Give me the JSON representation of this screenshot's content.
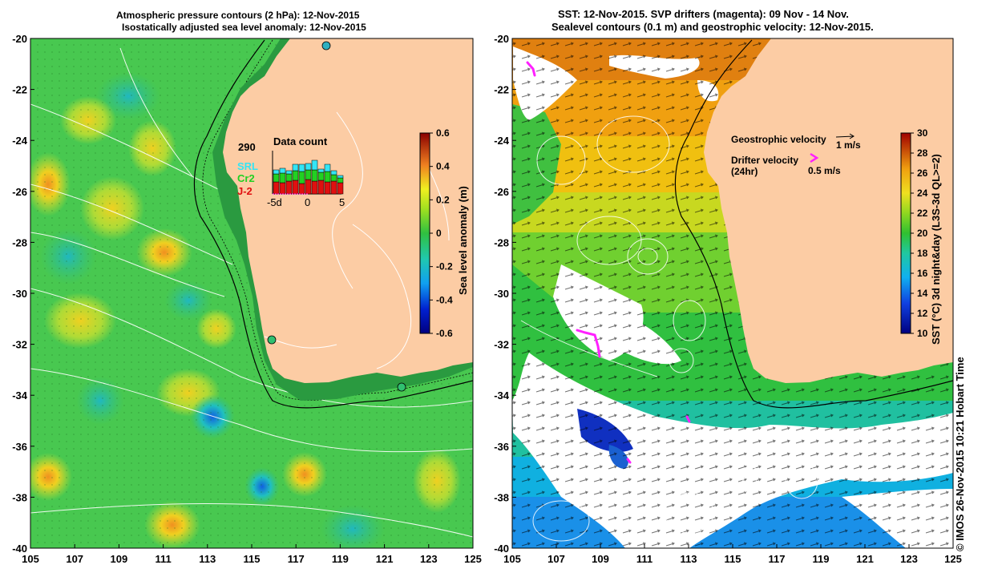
{
  "left_panel": {
    "title_line1": "Atmospheric pressure contours (2 hPa): 12-Nov-2015",
    "title_line2": "Isostatically adjusted sea level anomaly: 12-Nov-2015",
    "x_ticks": [
      "105",
      "107",
      "109",
      "111",
      "113",
      "115",
      "117",
      "119",
      "121",
      "123",
      "125"
    ],
    "y_ticks": [
      "-20",
      "-22",
      "-24",
      "-26",
      "-28",
      "-30",
      "-32",
      "-34",
      "-36",
      "-38",
      "-40"
    ],
    "colorbar": {
      "label": "Sea level anomaly (m)",
      "ticks": [
        "0.6",
        "0.4",
        "0.2",
        "0",
        "-0.2",
        "-0.4",
        "-0.6"
      ],
      "range": [
        -0.6,
        0.6
      ]
    },
    "inset": {
      "title": "Data count",
      "count": "290",
      "legend": [
        {
          "label": "SRL",
          "color": "#33e5f5"
        },
        {
          "label": "Cr2",
          "color": "#22d022"
        },
        {
          "label": "J-2",
          "color": "#e01010"
        }
      ],
      "x_ticks": [
        "-5d",
        "0",
        "5"
      ]
    }
  },
  "right_panel": {
    "title_line1": "SST: 12-Nov-2015. SVP drifters (magenta): 09 Nov - 14 Nov.",
    "title_line2": "Sealevel contours (0.1 m) and geostrophic velocity: 12-Nov-2015.",
    "x_ticks": [
      "105",
      "107",
      "109",
      "111",
      "113",
      "115",
      "117",
      "119",
      "121",
      "123",
      "125"
    ],
    "y_ticks": [
      "-20",
      "-22",
      "-24",
      "-26",
      "-28",
      "-30",
      "-32",
      "-34",
      "-36",
      "-38",
      "-40"
    ],
    "legend": {
      "geostrophic_label": "Geostrophic velocity",
      "geostrophic_scale": "1 m/s",
      "drifter_label": "Drifter velocity",
      "drifter_sub": "(24hr)",
      "drifter_scale": "0.5 m/s"
    },
    "colorbar": {
      "label": "SST (°C) 3d night&day (L3S-3d QL>=2)",
      "ticks": [
        "30",
        "28",
        "26",
        "24",
        "22",
        "20",
        "18",
        "16",
        "14",
        "12",
        "10"
      ],
      "range": [
        10,
        30
      ]
    }
  },
  "credit": "© IMOS 26-Nov-2015 10:21 Hobart Time",
  "colors": {
    "land": "#fccca4",
    "drifter": "#ff20ff",
    "sla_ocean": "#40c850",
    "sst_warm": "#f0a010",
    "sst_cool": "#1ab0e0",
    "cloud": "#ffffff"
  }
}
